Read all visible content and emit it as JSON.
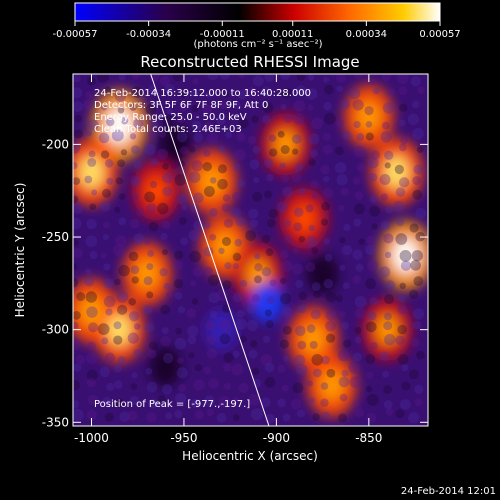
{
  "chart_data": {
    "type": "heatmap",
    "title": "Reconstructed RHESSI Image",
    "xlabel": "Heliocentric X (arcsec)",
    "ylabel": "Heliocentric Y (arcsec)",
    "xlim": [
      -1010,
      -818
    ],
    "ylim": [
      -352,
      -162
    ],
    "x_ticks": [
      -1000,
      -950,
      -900,
      -850
    ],
    "y_ticks": [
      -200,
      -250,
      -300,
      -350
    ],
    "x_tick_labels": [
      "-1000",
      "-950",
      "-900",
      "-850"
    ],
    "y_tick_labels": [
      "-200",
      "-250",
      "-300",
      "-350"
    ],
    "colorbar": {
      "range": [
        -0.00057,
        0.00057
      ],
      "ticks": [
        -0.00057,
        -0.00034,
        -0.00011,
        0.00011,
        0.00034,
        0.00057
      ],
      "tick_labels": [
        "-0.00057",
        "-0.00034",
        "-0.00011",
        "0.00011",
        "0.00034",
        "0.00057"
      ],
      "units_label": "(photons cm⁻² s⁻¹ asec⁻²)",
      "colormap": [
        "#0000ff",
        "#000000",
        "#ff0000",
        "#ff8800",
        "#ffff00",
        "#ffffff"
      ]
    },
    "annotations": {
      "time": "24-Feb-2014 16:39:12.000 to 16:40:28.000",
      "detectors": "Detectors: 3F 5F 6F 7F 8F 9F, Att 0",
      "energy": "Energy Range: 25.0 - 50.0 keV",
      "clean": "Clean    Total counts: 2.46E+03",
      "peak": "Position of Peak = [-977.,-197.]"
    },
    "limb_line": {
      "x": [
        -968,
        -904
      ],
      "y": [
        -162,
        -352
      ]
    },
    "peak_position": [
      -977,
      -197
    ],
    "bright_regions": [
      {
        "x": -985,
        "y": -190,
        "level": 1.0
      },
      {
        "x": -1000,
        "y": -215,
        "level": 0.85
      },
      {
        "x": -985,
        "y": -300,
        "level": 0.8
      },
      {
        "x": -970,
        "y": -270,
        "level": 0.7
      },
      {
        "x": -1000,
        "y": -290,
        "level": 0.75
      },
      {
        "x": -935,
        "y": -220,
        "level": 0.75
      },
      {
        "x": -928,
        "y": -255,
        "level": 0.7
      },
      {
        "x": -910,
        "y": -270,
        "level": 0.65
      },
      {
        "x": -880,
        "y": -305,
        "level": 0.75
      },
      {
        "x": -870,
        "y": -330,
        "level": 0.7
      },
      {
        "x": -895,
        "y": -200,
        "level": 0.65
      },
      {
        "x": -885,
        "y": -240,
        "level": 0.6
      },
      {
        "x": -850,
        "y": -185,
        "level": 0.7
      },
      {
        "x": -835,
        "y": -215,
        "level": 0.85
      },
      {
        "x": -830,
        "y": -260,
        "level": 0.9
      },
      {
        "x": -840,
        "y": -300,
        "level": 0.65
      },
      {
        "x": -965,
        "y": -225,
        "level": 0.55
      }
    ],
    "dark_regions": [
      {
        "x": -905,
        "y": -285,
        "level": -0.95
      },
      {
        "x": -930,
        "y": -300,
        "level": -0.7
      },
      {
        "x": -960,
        "y": -320,
        "level": -0.6
      },
      {
        "x": -955,
        "y": -200,
        "level": -0.6
      },
      {
        "x": -875,
        "y": -270,
        "level": -0.5
      }
    ]
  },
  "footer": {
    "timestamp": "24-Feb-2014 12:01"
  }
}
